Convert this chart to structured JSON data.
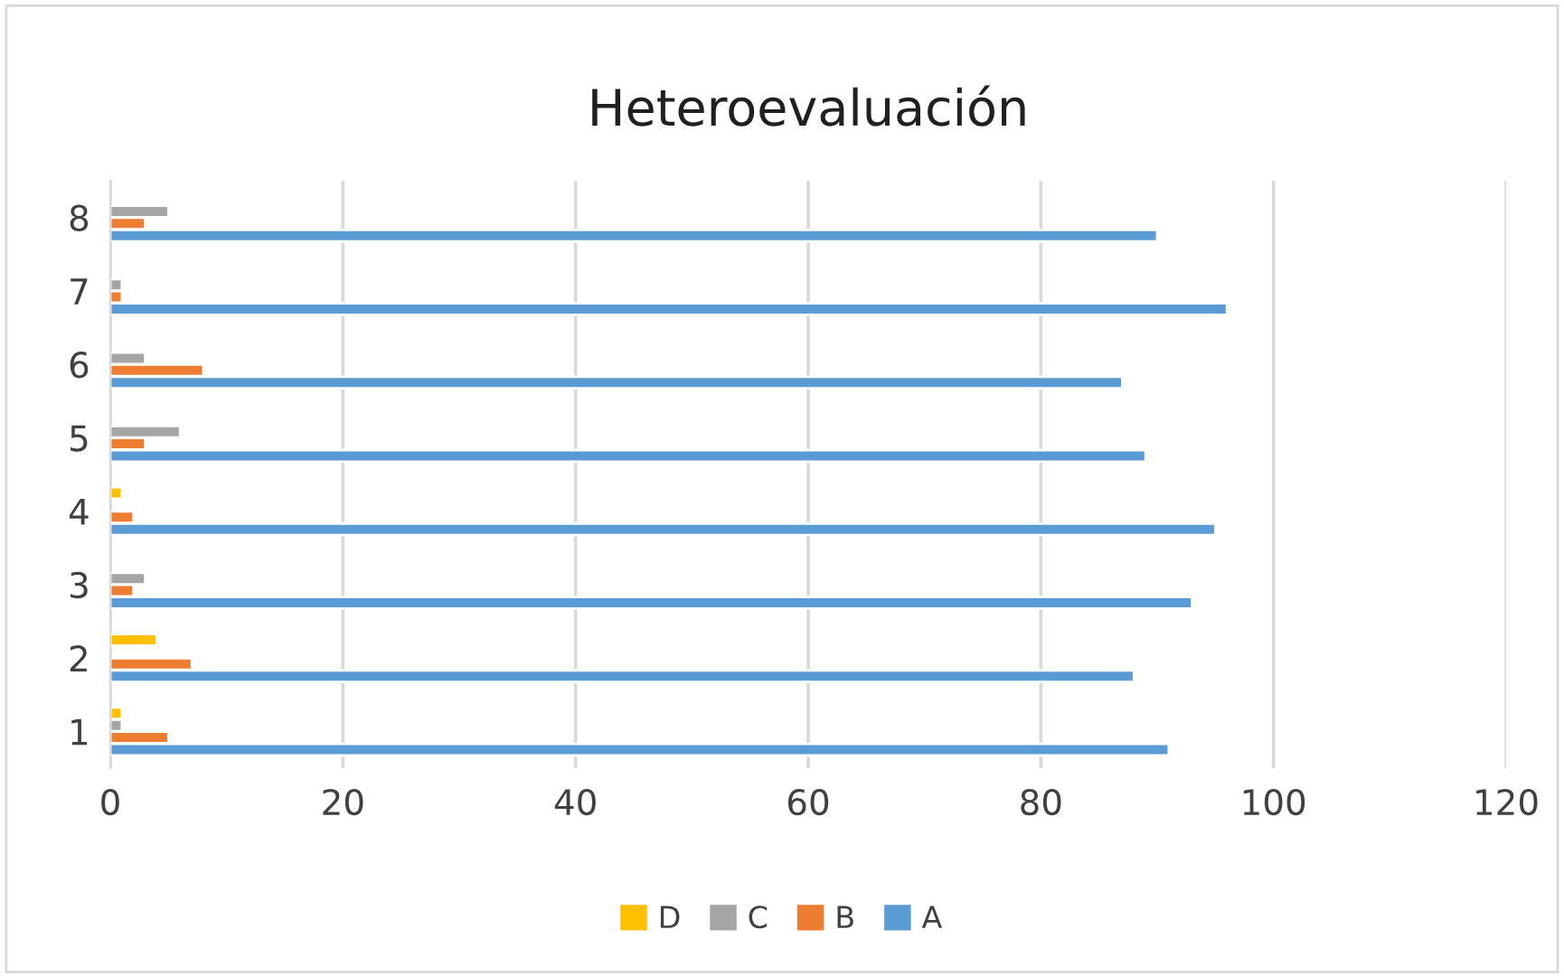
{
  "chart_data": {
    "type": "bar",
    "orientation": "horizontal",
    "title": "Heteroevaluación",
    "categories": [
      "8",
      "7",
      "6",
      "5",
      "4",
      "3",
      "2",
      "1"
    ],
    "series": [
      {
        "name": "A",
        "color": "#5b9bd5",
        "values": [
          90,
          96,
          87,
          89,
          95,
          93,
          88,
          91
        ]
      },
      {
        "name": "B",
        "color": "#ed7d31",
        "values": [
          3,
          1,
          8,
          3,
          2,
          2,
          7,
          5
        ]
      },
      {
        "name": "C",
        "color": "#a5a5a5",
        "values": [
          5,
          1,
          3,
          6,
          null,
          3,
          null,
          1
        ]
      },
      {
        "name": "D",
        "color": "#ffc000",
        "values": [
          null,
          null,
          null,
          null,
          1,
          null,
          4,
          1
        ]
      }
    ],
    "xlim": [
      0,
      120
    ],
    "xticks": [
      0,
      20,
      40,
      60,
      80,
      100,
      120
    ],
    "grid": "x",
    "legend": "bottom"
  }
}
